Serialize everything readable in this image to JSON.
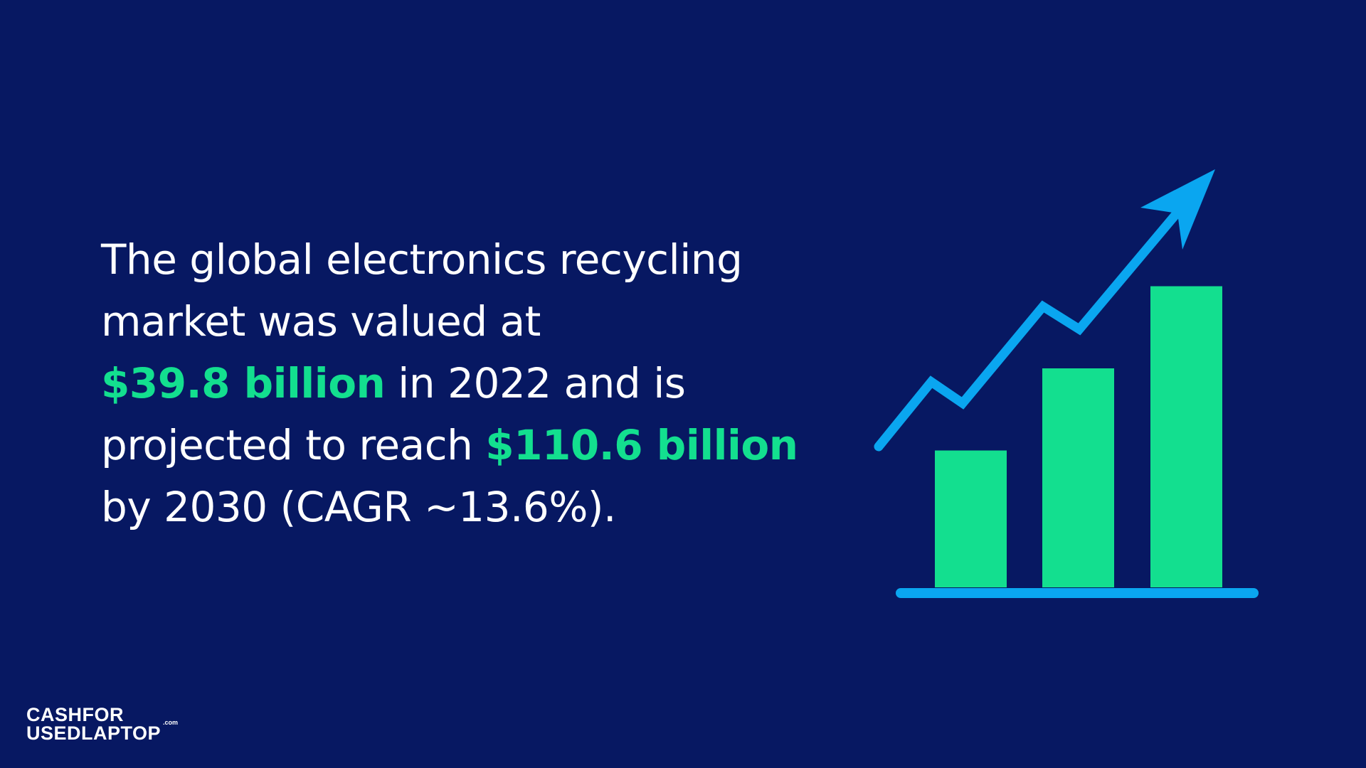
{
  "statement": {
    "line1": "The global electronics recycling",
    "line2": "market was valued at",
    "value_2022": "$39.8 billion",
    "line3_rest": " in 2022 and is",
    "line4_start": "projected to reach ",
    "value_2030": "$110.6 billion",
    "line5": "by 2030 (CAGR ~13.6%)."
  },
  "illustration": {
    "name": "growth-chart-icon",
    "bar_levels": [
      0.35,
      0.56,
      0.77
    ]
  },
  "logo": {
    "line1": "CASHFOR",
    "line2": "USEDLAPTOP",
    "suffix": ".com"
  },
  "colors": {
    "background": "#071862",
    "highlight_green": "#13df8f",
    "arrow_blue": "#0aa6f0",
    "text_white": "#ffffff"
  }
}
